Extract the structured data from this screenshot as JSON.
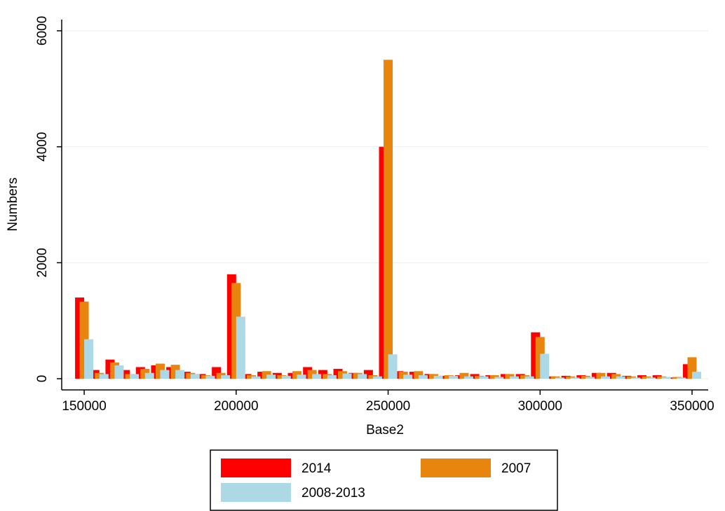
{
  "chart_data": {
    "type": "bar",
    "xlabel": "Base2",
    "ylabel": "Numbers",
    "x": [
      150000,
      155000,
      160000,
      165000,
      170000,
      175000,
      180000,
      185000,
      190000,
      195000,
      200000,
      205000,
      210000,
      215000,
      220000,
      225000,
      230000,
      235000,
      240000,
      245000,
      250000,
      255000,
      260000,
      265000,
      270000,
      275000,
      280000,
      285000,
      290000,
      295000,
      300000,
      305000,
      310000,
      315000,
      320000,
      325000,
      330000,
      335000,
      340000,
      345000,
      350000
    ],
    "series": [
      {
        "name": "2014",
        "color": "#ff0000",
        "values": [
          1400,
          150,
          330,
          150,
          200,
          230,
          200,
          120,
          80,
          200,
          1800,
          80,
          120,
          100,
          100,
          200,
          150,
          170,
          100,
          150,
          4000,
          130,
          120,
          80,
          50,
          60,
          80,
          60,
          80,
          80,
          800,
          40,
          50,
          60,
          100,
          100,
          50,
          60,
          60,
          20,
          250
        ]
      },
      {
        "name": "2007",
        "color": "#e8850e",
        "values": [
          1330,
          100,
          280,
          80,
          170,
          260,
          240,
          100,
          60,
          100,
          1650,
          60,
          130,
          60,
          130,
          150,
          80,
          130,
          100,
          60,
          5500,
          120,
          130,
          80,
          60,
          100,
          50,
          60,
          80,
          60,
          720,
          40,
          40,
          50,
          100,
          80,
          40,
          40,
          40,
          30,
          370
        ]
      },
      {
        "name": "2008-2013",
        "color": "#add8e6",
        "values": [
          680,
          80,
          230,
          80,
          100,
          150,
          150,
          80,
          50,
          60,
          1070,
          40,
          70,
          50,
          70,
          80,
          60,
          90,
          80,
          40,
          420,
          70,
          60,
          50,
          50,
          40,
          40,
          30,
          40,
          40,
          430,
          20,
          20,
          30,
          40,
          40,
          20,
          20,
          30,
          20,
          120
        ]
      }
    ],
    "xlim": [
      142600,
      355300
    ],
    "ylim": [
      -193,
      6193
    ],
    "xticks": [
      150000,
      200000,
      250000,
      300000,
      350000
    ],
    "yticks": [
      0,
      2000,
      4000,
      6000
    ],
    "grid": true
  }
}
